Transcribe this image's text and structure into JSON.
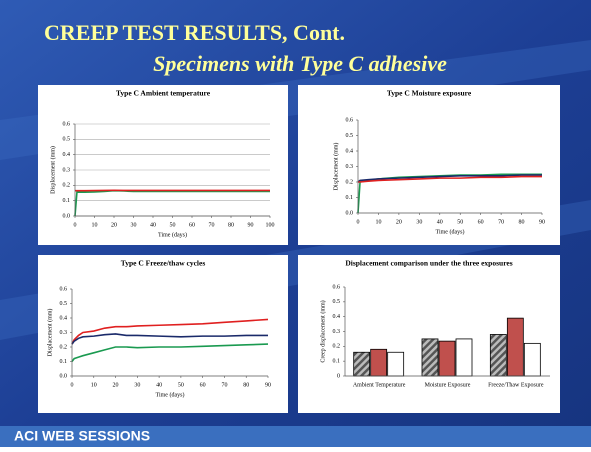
{
  "slide": {
    "title": "CREEP  TEST  RESULTS, Cont.",
    "subtitle": "Specimens with Type C adhesive",
    "footer": "ACI WEB SESSIONS"
  },
  "chart_data": [
    {
      "type": "line",
      "title": "Type C Ambient temperature",
      "xlabel": "Time (days)",
      "ylabel": "Displacement (mm)",
      "x": [
        0,
        1,
        5,
        10,
        15,
        20,
        25,
        30,
        40,
        50,
        60,
        70,
        80,
        90,
        100
      ],
      "xlim": [
        0,
        100
      ],
      "xticks": [
        0,
        10,
        20,
        30,
        40,
        50,
        60,
        70,
        80,
        90,
        100
      ],
      "ylim": [
        0,
        0.6
      ],
      "yticks": [
        {
          "value": 0,
          "label": "0.0"
        },
        0.1,
        0.2,
        0.3,
        0.4,
        0.5,
        0.6
      ],
      "grid": true,
      "series": [
        {
          "color": "#1a9a50",
          "values": [
            0,
            0.155,
            0.155,
            0.157,
            0.16,
            0.165,
            0.163,
            0.16,
            0.16,
            0.16,
            0.16,
            0.16,
            0.16,
            0.16,
            0.16
          ]
        },
        {
          "color": "#e02020",
          "values": [
            0.165,
            0.165,
            0.165,
            0.166,
            0.167,
            0.168,
            0.167,
            0.167,
            0.167,
            0.167,
            0.167,
            0.167,
            0.167,
            0.167,
            0.167
          ]
        }
      ]
    },
    {
      "type": "line",
      "title": "Type C Moisture exposure",
      "xlabel": "Time (days)",
      "ylabel": "Displacement (mm)",
      "x": [
        0,
        1,
        5,
        10,
        20,
        30,
        40,
        50,
        60,
        70,
        80,
        90
      ],
      "xlim": [
        0,
        90
      ],
      "xticks": [
        0,
        10,
        20,
        30,
        40,
        50,
        60,
        70,
        80,
        90
      ],
      "ylim": [
        0,
        0.6
      ],
      "yticks": [
        {
          "value": 0,
          "label": "0.0"
        },
        0.1,
        0.2,
        0.3,
        0.4,
        0.5,
        0.6
      ],
      "grid": false,
      "series": [
        {
          "color": "#1a9a50",
          "values": [
            0,
            0.2,
            0.21,
            0.22,
            0.23,
            0.235,
            0.24,
            0.245,
            0.245,
            0.25,
            0.25,
            0.25
          ]
        },
        {
          "color": "#1a2a6a",
          "values": [
            0.2,
            0.21,
            0.215,
            0.22,
            0.225,
            0.23,
            0.235,
            0.24,
            0.24,
            0.24,
            0.245,
            0.245
          ]
        },
        {
          "color": "#e02020",
          "values": [
            0.2,
            0.2,
            0.205,
            0.21,
            0.215,
            0.22,
            0.225,
            0.225,
            0.23,
            0.23,
            0.235,
            0.235
          ]
        }
      ]
    },
    {
      "type": "line",
      "title": "Type C Freeze/thaw cycles",
      "xlabel": "Time (days)",
      "ylabel": "Displacement (mm)",
      "x": [
        0,
        1,
        3,
        5,
        10,
        15,
        20,
        25,
        30,
        40,
        50,
        60,
        70,
        80,
        90
      ],
      "xlim": [
        0,
        90
      ],
      "xticks": [
        0,
        10,
        20,
        30,
        40,
        50,
        60,
        70,
        80,
        90
      ],
      "ylim": [
        0,
        0.6
      ],
      "yticks": [
        {
          "value": 0,
          "label": "0.0"
        },
        0.1,
        0.2,
        0.3,
        0.4,
        0.5,
        0.6
      ],
      "grid": false,
      "series": [
        {
          "color": "#e02020",
          "values": [
            0.22,
            0.25,
            0.28,
            0.3,
            0.31,
            0.33,
            0.34,
            0.34,
            0.345,
            0.35,
            0.355,
            0.36,
            0.37,
            0.38,
            0.39
          ]
        },
        {
          "color": "#1a2a6a",
          "values": [
            0.22,
            0.24,
            0.26,
            0.27,
            0.275,
            0.285,
            0.29,
            0.28,
            0.28,
            0.275,
            0.27,
            0.275,
            0.275,
            0.28,
            0.28
          ]
        },
        {
          "color": "#1a9a50",
          "values": [
            0.1,
            0.12,
            0.13,
            0.14,
            0.16,
            0.18,
            0.2,
            0.2,
            0.195,
            0.2,
            0.2,
            0.205,
            0.21,
            0.215,
            0.22
          ]
        }
      ]
    },
    {
      "type": "bar",
      "title": "Displacement comparison under the three exposures",
      "ylabel": "Creep displacement (mm)",
      "categories": [
        "Ambient Temperature",
        "Moisture Exposure",
        "Freeze/Thaw Exposure"
      ],
      "ylim": [
        0,
        0.6
      ],
      "yticks": [
        0,
        0.1,
        0.2,
        0.3,
        0.4,
        0.5,
        0.6
      ],
      "grid": false,
      "series": [
        {
          "color": "#8a8a8a",
          "hatch": true,
          "values": [
            0.16,
            0.25,
            0.28
          ]
        },
        {
          "color": "#c0504d",
          "values": [
            0.18,
            0.235,
            0.39
          ]
        },
        {
          "color": "#ffffff",
          "values": [
            0.16,
            0.25,
            0.22
          ]
        }
      ]
    }
  ]
}
